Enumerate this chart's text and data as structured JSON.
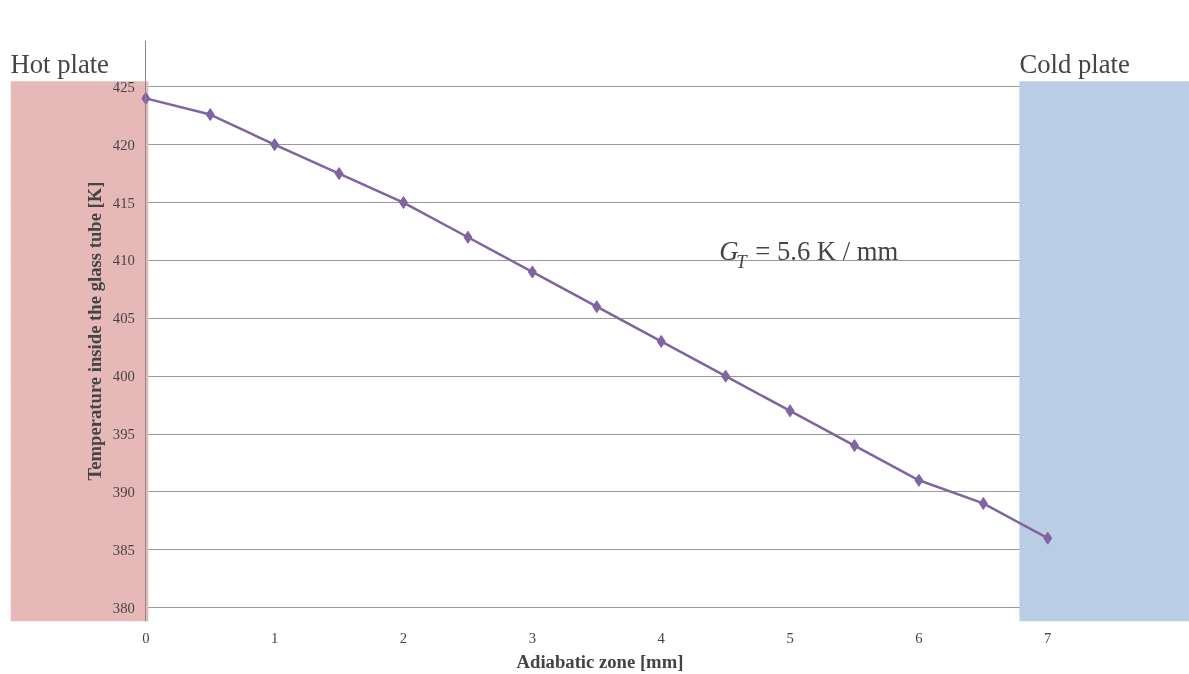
{
  "chart_data": {
    "type": "line",
    "xlabel": "Adiabatic zone [mm]",
    "ylabel": "Temperature inside the glass tube [K]",
    "x": [
      0,
      0.5,
      1,
      1.5,
      2,
      2.5,
      3,
      3.5,
      4,
      4.5,
      5,
      5.5,
      6,
      6.5,
      7
    ],
    "series": [
      {
        "color": "#8064a2",
        "values": [
          424,
          422.6,
          420,
          417.5,
          415,
          412,
          409,
          406,
          403,
          400,
          397,
          394,
          391,
          389,
          386
        ]
      }
    ],
    "xlim": [
      -1.05,
      8.1
    ],
    "ylim": [
      378.8,
      429
    ],
    "xticks": [
      0,
      1,
      2,
      3,
      4,
      5,
      6,
      7
    ],
    "yticks": [
      380,
      385,
      390,
      395,
      400,
      405,
      410,
      415,
      420,
      425
    ],
    "bands": [
      {
        "axis": "x",
        "from": -1.05,
        "to": 0.02,
        "label": "Hot plate",
        "color": "#e6b9b8"
      },
      {
        "axis": "x",
        "from": 6.78,
        "to": 8.1,
        "label": "Cold plate",
        "color": "#b9cde5"
      }
    ],
    "annotations": [
      "G$_{T}$ = 5.6 K / mm"
    ],
    "grid": "y",
    "marker": "diamond",
    "line_style": "solid"
  }
}
